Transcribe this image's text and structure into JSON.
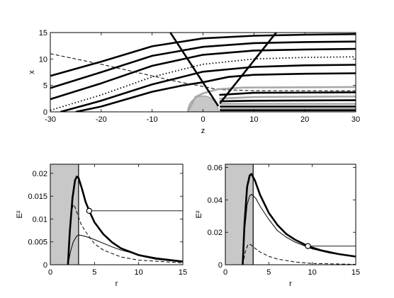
{
  "chart_data": [
    {
      "type": "line",
      "xlabel": "z",
      "ylabel": "x",
      "xlim": [
        -30,
        30
      ],
      "ylim": [
        0,
        15
      ],
      "xticks": [
        -30,
        -20,
        -10,
        0,
        10,
        20,
        30
      ],
      "yticks": [
        0,
        5,
        10,
        15
      ],
      "obstacle_radius": 3,
      "series": [
        {
          "style": "thick",
          "points": [
            [
              -30,
              6.8
            ],
            [
              -20,
              9.5
            ],
            [
              -10,
              12.4
            ],
            [
              0,
              13.9
            ],
            [
              10,
              14.4
            ],
            [
              20,
              14.6
            ],
            [
              30,
              14.7
            ]
          ]
        },
        {
          "style": "thick",
          "points": [
            [
              -30,
              4.5
            ],
            [
              -20,
              7.5
            ],
            [
              -10,
              10.6
            ],
            [
              0,
              12.3
            ],
            [
              10,
              13.0
            ],
            [
              20,
              13.2
            ],
            [
              30,
              13.3
            ]
          ]
        },
        {
          "style": "thick",
          "points": [
            [
              -30,
              2.4
            ],
            [
              -20,
              5.4
            ],
            [
              -10,
              8.7
            ],
            [
              0,
              10.8
            ],
            [
              10,
              11.6
            ],
            [
              20,
              11.8
            ],
            [
              30,
              11.9
            ]
          ]
        },
        {
          "style": "dotted",
          "points": [
            [
              -30,
              0.3
            ],
            [
              -20,
              3.2
            ],
            [
              -10,
              6.6
            ],
            [
              0,
              9.0
            ],
            [
              10,
              10.0
            ],
            [
              20,
              10.3
            ],
            [
              30,
              10.4
            ]
          ]
        },
        {
          "style": "thick",
          "points": [
            [
              -28,
              0.0
            ],
            [
              -20,
              2.1
            ],
            [
              -10,
              5.2
            ],
            [
              0,
              7.6
            ],
            [
              10,
              8.5
            ],
            [
              20,
              8.8
            ],
            [
              30,
              8.9
            ]
          ]
        },
        {
          "style": "thick",
          "points": [
            [
              -25,
              0.0
            ],
            [
              -20,
              1.0
            ],
            [
              -10,
              3.8
            ],
            [
              -4,
              5.0
            ],
            [
              0,
              5.6
            ],
            [
              5,
              6.6
            ],
            [
              10,
              7.0
            ],
            [
              20,
              7.2
            ],
            [
              30,
              7.3
            ]
          ]
        },
        {
          "style": "dashed",
          "points": [
            [
              -30,
              11.0
            ],
            [
              -20,
              9.0
            ],
            [
              -10,
              6.8
            ],
            [
              -5,
              5.7
            ],
            [
              0,
              4.8
            ],
            [
              3,
              4.2
            ],
            [
              10,
              4.0
            ],
            [
              30,
              4.0
            ]
          ]
        },
        {
          "style": "gray",
          "points": [
            [
              -3,
              0.0
            ],
            [
              -1.5,
              2.8
            ],
            [
              0,
              3.5
            ],
            [
              3,
              4.3
            ],
            [
              8,
              4.6
            ],
            [
              30,
              4.7
            ]
          ]
        },
        {
          "style": "thick",
          "points": [
            [
              3.2,
              3.2
            ],
            [
              10,
              3.6
            ],
            [
              30,
              3.7
            ]
          ]
        },
        {
          "style": "gray",
          "points": [
            [
              3.2,
              2.5
            ],
            [
              10,
              2.8
            ],
            [
              30,
              2.9
            ]
          ]
        },
        {
          "style": "thick",
          "points": [
            [
              3.3,
              2.0
            ],
            [
              10,
              2.1
            ],
            [
              30,
              2.2
            ]
          ]
        },
        {
          "style": "gray",
          "points": [
            [
              3.3,
              1.5
            ],
            [
              10,
              1.5
            ],
            [
              30,
              1.5
            ]
          ]
        },
        {
          "style": "thick",
          "points": [
            [
              3.3,
              1.0
            ],
            [
              10,
              1.0
            ],
            [
              30,
              1.0
            ]
          ]
        },
        {
          "style": "gray",
          "points": [
            [
              3.3,
              0.6
            ],
            [
              30,
              0.6
            ]
          ]
        },
        {
          "style": "thick",
          "points": [
            [
              3.3,
              0.3
            ],
            [
              30,
              0.3
            ]
          ]
        },
        {
          "style": "thick",
          "points": [
            [
              -7.1,
              16.0
            ],
            [
              3.0,
              1.1
            ]
          ]
        },
        {
          "style": "thick",
          "points": [
            [
              3.3,
              1.6
            ],
            [
              15.2,
              16.0
            ]
          ]
        }
      ]
    },
    {
      "type": "line",
      "xlabel": "r",
      "ylabel": "E²",
      "xlim": [
        0,
        15
      ],
      "ylim": [
        0,
        0.022
      ],
      "xticks": [
        0,
        5,
        10,
        15
      ],
      "yticks": [
        0,
        0.005,
        0.01,
        0.015,
        0.02
      ],
      "ytick_labels": [
        "0",
        "0.005",
        "0.01",
        "0.015",
        "0.02"
      ],
      "shaded_region": [
        0,
        3.2
      ],
      "marker_point": [
        4.4,
        0.0118
      ],
      "horizontal_line": 0.0118,
      "series": [
        {
          "style": "thick",
          "points": [
            [
              2.0,
              0.0
            ],
            [
              2.2,
              0.007
            ],
            [
              2.5,
              0.0145
            ],
            [
              2.8,
              0.0185
            ],
            [
              3.0,
              0.0193
            ],
            [
              3.2,
              0.019
            ],
            [
              3.6,
              0.0165
            ],
            [
              4.0,
              0.0137
            ],
            [
              4.4,
              0.0118
            ],
            [
              5,
              0.0093
            ],
            [
              6,
              0.0067
            ],
            [
              7,
              0.0049
            ],
            [
              8,
              0.0036
            ],
            [
              10,
              0.0021
            ],
            [
              12,
              0.0013
            ],
            [
              15,
              0.0007
            ]
          ]
        },
        {
          "style": "thin",
          "points": [
            [
              2.0,
              0.0
            ],
            [
              2.3,
              0.003
            ],
            [
              2.6,
              0.005
            ],
            [
              3.0,
              0.0063
            ],
            [
              3.3,
              0.0065
            ],
            [
              4,
              0.0062
            ],
            [
              5,
              0.0055
            ],
            [
              6,
              0.0047
            ],
            [
              7,
              0.0039
            ],
            [
              8,
              0.0032
            ],
            [
              10,
              0.0022
            ],
            [
              12,
              0.0015
            ],
            [
              15,
              0.0008
            ]
          ]
        },
        {
          "style": "dashed",
          "points": [
            [
              2.0,
              0.0
            ],
            [
              2.2,
              0.006
            ],
            [
              2.4,
              0.0115
            ],
            [
              2.6,
              0.0132
            ],
            [
              2.8,
              0.0126
            ],
            [
              3.0,
              0.0115
            ],
            [
              3.5,
              0.0088
            ],
            [
              4,
              0.0072
            ],
            [
              5,
              0.0046
            ],
            [
              6,
              0.0032
            ],
            [
              8,
              0.0017
            ],
            [
              10,
              0.001
            ],
            [
              15,
              0.0004
            ]
          ]
        }
      ]
    },
    {
      "type": "line",
      "xlabel": "r",
      "ylabel": "E²",
      "xlim": [
        0,
        15
      ],
      "ylim": [
        0,
        0.062
      ],
      "xticks": [
        0,
        5,
        10,
        15
      ],
      "yticks": [
        0,
        0.02,
        0.04,
        0.06
      ],
      "ytick_labels": [
        "0",
        "0.02",
        "0.04",
        "0.06"
      ],
      "shaded_region": [
        0,
        3.2
      ],
      "marker_point": [
        9.5,
        0.0115
      ],
      "horizontal_line": 0.0115,
      "series": [
        {
          "style": "thick",
          "points": [
            [
              2.0,
              0.0
            ],
            [
              2.2,
              0.025
            ],
            [
              2.5,
              0.048
            ],
            [
              2.8,
              0.055
            ],
            [
              3.0,
              0.056
            ],
            [
              3.4,
              0.052
            ],
            [
              4,
              0.043
            ],
            [
              5,
              0.032
            ],
            [
              6,
              0.0245
            ],
            [
              7,
              0.019
            ],
            [
              8,
              0.0155
            ],
            [
              9.5,
              0.0115
            ],
            [
              11,
              0.0089
            ],
            [
              13,
              0.0066
            ],
            [
              15,
              0.005
            ]
          ]
        },
        {
          "style": "thin",
          "points": [
            [
              2.0,
              0.0
            ],
            [
              2.2,
              0.02
            ],
            [
              2.5,
              0.037
            ],
            [
              2.8,
              0.0425
            ],
            [
              3.0,
              0.0435
            ],
            [
              3.5,
              0.041
            ],
            [
              4,
              0.036
            ],
            [
              5,
              0.028
            ],
            [
              6,
              0.021
            ],
            [
              7,
              0.017
            ],
            [
              8,
              0.014
            ],
            [
              10,
              0.0098
            ],
            [
              12,
              0.0072
            ],
            [
              15,
              0.0048
            ]
          ]
        },
        {
          "style": "dashed",
          "points": [
            [
              2.0,
              0.0
            ],
            [
              2.3,
              0.008
            ],
            [
              2.6,
              0.0125
            ],
            [
              2.9,
              0.0125
            ],
            [
              3.2,
              0.011
            ],
            [
              4,
              0.0078
            ],
            [
              5,
              0.0052
            ],
            [
              6,
              0.0035
            ],
            [
              8,
              0.0017
            ],
            [
              10,
              0.0008
            ],
            [
              15,
              0.0002
            ]
          ]
        }
      ]
    }
  ]
}
